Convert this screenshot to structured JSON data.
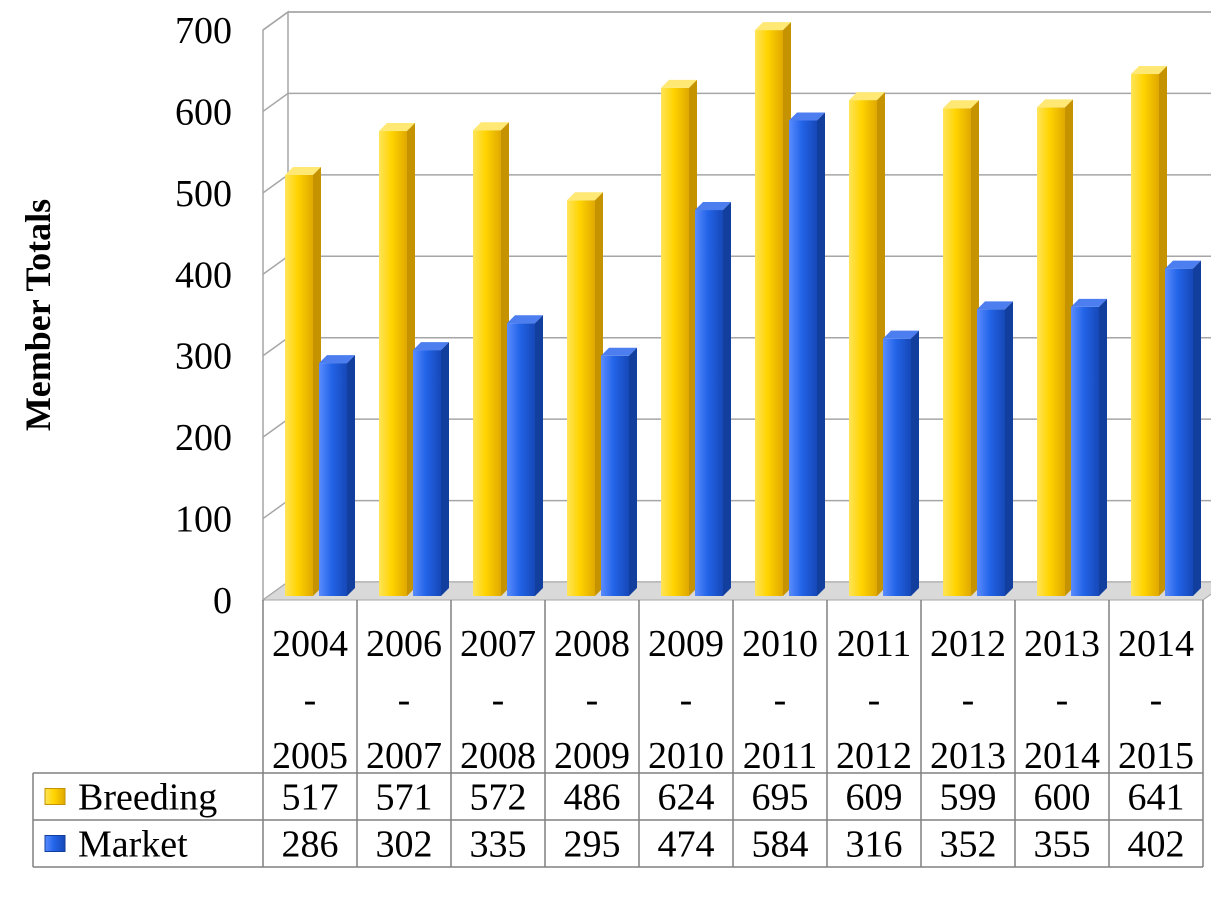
{
  "chart_data": {
    "type": "bar",
    "ylabel": "Member Totals",
    "ylim": [
      0,
      700
    ],
    "yticks": [
      "0",
      "100",
      "200",
      "300",
      "400",
      "500",
      "600",
      "700"
    ],
    "categories": [
      {
        "start": "2004",
        "sep": "-",
        "end": "2005"
      },
      {
        "start": "2006",
        "sep": "-",
        "end": "2007"
      },
      {
        "start": "2007",
        "sep": "-",
        "end": "2008"
      },
      {
        "start": "2008",
        "sep": "-",
        "end": "2009"
      },
      {
        "start": "2009",
        "sep": "-",
        "end": "2010"
      },
      {
        "start": "2010",
        "sep": "-",
        "end": "2011"
      },
      {
        "start": "2011",
        "sep": "-",
        "end": "2012"
      },
      {
        "start": "2012",
        "sep": "-",
        "end": "2013"
      },
      {
        "start": "2013",
        "sep": "-",
        "end": "2014"
      },
      {
        "start": "2014",
        "sep": "-",
        "end": "2015"
      }
    ],
    "series": [
      {
        "name": "Breeding",
        "color": "#F2C500",
        "values": [
          517,
          571,
          572,
          486,
          624,
          695,
          609,
          599,
          600,
          641
        ]
      },
      {
        "name": "Market",
        "color": "#1F5FD8",
        "values": [
          286,
          302,
          335,
          295,
          474,
          584,
          316,
          352,
          355,
          402
        ]
      }
    ],
    "grid": true,
    "legend": "data-table"
  }
}
